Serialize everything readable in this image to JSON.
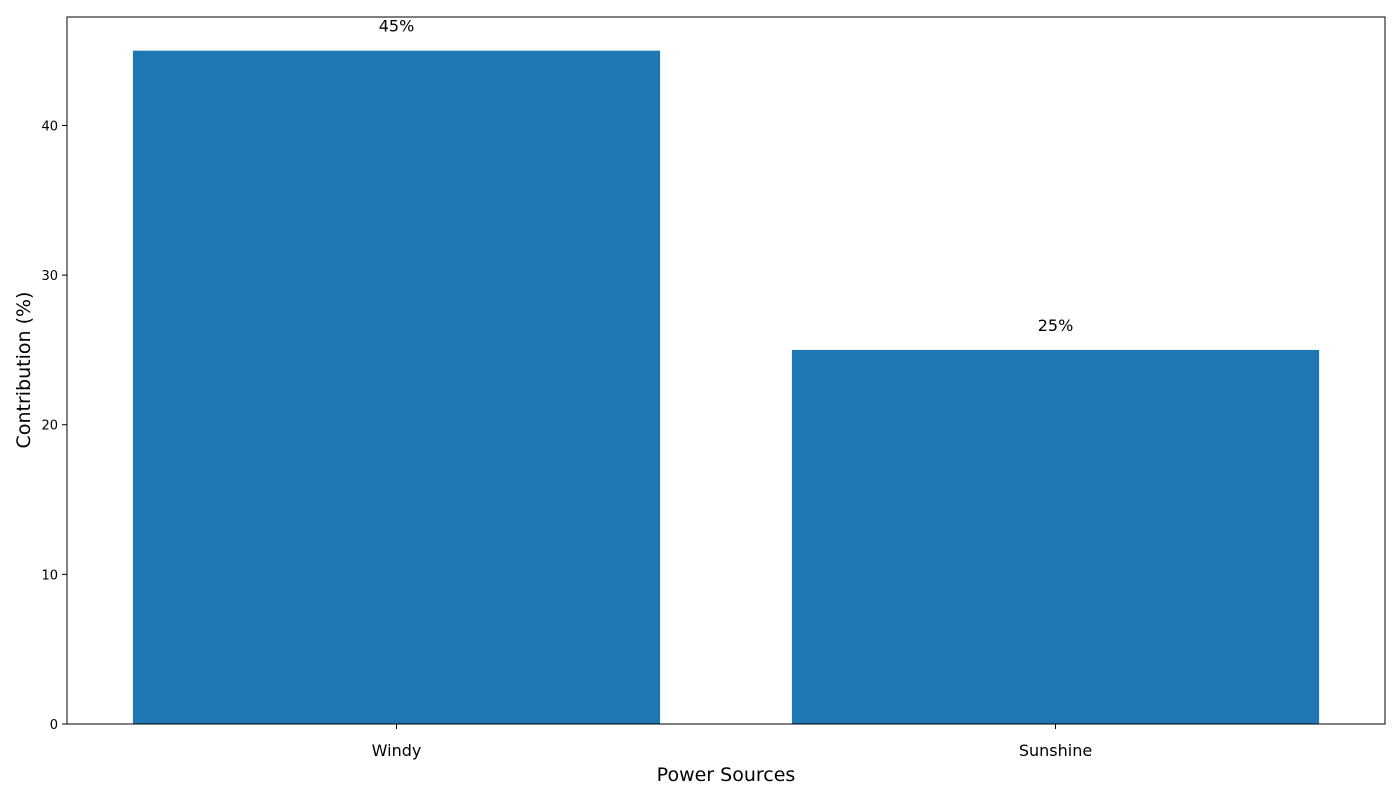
{
  "chart_data": {
    "type": "bar",
    "title": "",
    "xlabel": "Power Sources",
    "ylabel": "Contribution (%)",
    "categories": [
      "Windy",
      "Sunshine"
    ],
    "values": [
      45,
      25
    ],
    "data_labels": [
      "45%",
      "25%"
    ],
    "ylim": [
      0,
      47.25
    ],
    "yticks": [
      0,
      10,
      20,
      30,
      40
    ],
    "grid": false,
    "legend": "none",
    "colors": {
      "bar": "#1f77b4",
      "axis": "#000000"
    }
  }
}
